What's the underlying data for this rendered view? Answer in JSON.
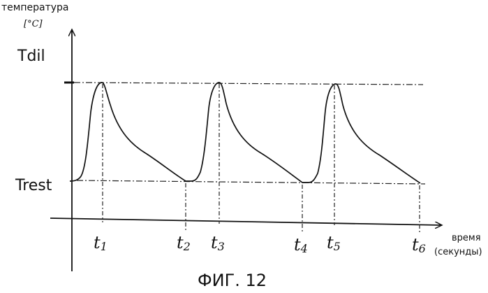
{
  "y_axis": {
    "label": "температура",
    "unit": "[°C]"
  },
  "x_axis": {
    "label": "время",
    "unit": "(секунды)"
  },
  "levels": {
    "high": "Tdil",
    "low": "Trest"
  },
  "time_marks": [
    {
      "base": "t",
      "sub": "1"
    },
    {
      "base": "t",
      "sub": "2"
    },
    {
      "base": "t",
      "sub": "3"
    },
    {
      "base": "t",
      "sub": "4"
    },
    {
      "base": "t",
      "sub": "5"
    },
    {
      "base": "t",
      "sub": "6"
    }
  ],
  "caption": "ФИГ. 12"
}
